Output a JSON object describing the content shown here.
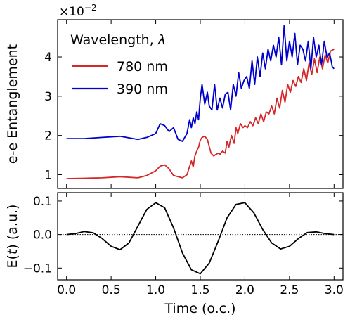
{
  "chart_data": [
    {
      "type": "line",
      "xlabel": "",
      "ylabel": "e-e Entanglement",
      "multiplier": "×10",
      "multiplier_exp": "−2",
      "xlim": [
        -0.1,
        3.1
      ],
      "ylim": [
        0.65,
        4.95
      ],
      "xticks": [
        0.0,
        0.5,
        1.0,
        1.5,
        2.0,
        2.5,
        3.0
      ],
      "yticks": [
        1,
        2,
        3,
        4
      ],
      "ytick_labels": [
        "1",
        "2",
        "3",
        "4"
      ],
      "legend": {
        "title": "Wavelength, ",
        "title_symbol": "λ",
        "position": "top-left"
      },
      "series": [
        {
          "name": "780 nm",
          "color": "#d62728",
          "x": [
            0.0,
            0.2,
            0.4,
            0.6,
            0.8,
            0.9,
            1.0,
            1.05,
            1.1,
            1.15,
            1.2,
            1.25,
            1.3,
            1.35,
            1.4,
            1.42,
            1.44,
            1.46,
            1.48,
            1.5,
            1.52,
            1.55,
            1.58,
            1.6,
            1.62,
            1.65,
            1.7,
            1.72,
            1.75,
            1.78,
            1.8,
            1.82,
            1.85,
            1.88,
            1.9,
            1.92,
            1.95,
            1.98,
            2.0,
            2.03,
            2.06,
            2.09,
            2.12,
            2.15,
            2.18,
            2.21,
            2.24,
            2.27,
            2.3,
            2.33,
            2.36,
            2.39,
            2.42,
            2.45,
            2.48,
            2.51,
            2.54,
            2.57,
            2.6,
            2.63,
            2.66,
            2.69,
            2.72,
            2.75,
            2.78,
            2.81,
            2.84,
            2.87,
            2.9,
            2.93,
            2.96,
            3.0
          ],
          "y": [
            0.9,
            0.91,
            0.92,
            0.95,
            0.92,
            0.98,
            1.1,
            1.22,
            1.25,
            1.15,
            0.98,
            0.95,
            0.92,
            1.0,
            1.35,
            1.2,
            1.48,
            1.6,
            1.7,
            1.88,
            1.95,
            1.98,
            1.9,
            1.72,
            1.55,
            1.48,
            1.55,
            1.52,
            1.6,
            1.55,
            1.85,
            1.7,
            2.0,
            1.8,
            2.2,
            2.05,
            2.3,
            2.2,
            2.25,
            2.2,
            2.35,
            2.25,
            2.45,
            2.3,
            2.55,
            2.35,
            2.6,
            2.55,
            2.75,
            2.55,
            2.95,
            2.7,
            3.15,
            2.85,
            3.3,
            3.1,
            3.4,
            3.25,
            3.5,
            3.35,
            3.7,
            3.4,
            3.85,
            3.55,
            3.95,
            3.6,
            4.0,
            3.7,
            4.05,
            3.85,
            4.15,
            4.2
          ]
        },
        {
          "name": "390 nm",
          "color": "#0000cc",
          "x": [
            0.0,
            0.2,
            0.4,
            0.6,
            0.8,
            0.9,
            1.0,
            1.05,
            1.1,
            1.15,
            1.2,
            1.25,
            1.3,
            1.35,
            1.38,
            1.4,
            1.42,
            1.44,
            1.46,
            1.48,
            1.5,
            1.52,
            1.55,
            1.58,
            1.6,
            1.63,
            1.66,
            1.69,
            1.72,
            1.75,
            1.78,
            1.81,
            1.84,
            1.87,
            1.9,
            1.93,
            1.96,
            1.99,
            2.02,
            2.05,
            2.08,
            2.11,
            2.14,
            2.17,
            2.2,
            2.23,
            2.26,
            2.29,
            2.32,
            2.35,
            2.38,
            2.41,
            2.44,
            2.47,
            2.5,
            2.53,
            2.56,
            2.59,
            2.62,
            2.65,
            2.68,
            2.71,
            2.74,
            2.77,
            2.8,
            2.83,
            2.86,
            2.89,
            2.92,
            2.95,
            2.98,
            3.0
          ],
          "y": [
            1.92,
            1.92,
            1.95,
            1.98,
            1.9,
            1.95,
            2.05,
            2.3,
            2.25,
            2.1,
            2.2,
            1.9,
            1.85,
            2.05,
            2.4,
            2.2,
            2.45,
            2.3,
            2.6,
            2.4,
            2.95,
            3.3,
            2.8,
            3.1,
            2.75,
            2.65,
            3.3,
            2.65,
            2.95,
            2.7,
            3.05,
            3.1,
            2.65,
            3.3,
            3.0,
            3.6,
            3.2,
            3.4,
            3.5,
            3.2,
            3.9,
            3.3,
            4.0,
            3.5,
            4.1,
            3.7,
            4.2,
            3.9,
            4.3,
            4.0,
            4.5,
            3.8,
            4.8,
            3.9,
            4.4,
            4.0,
            4.6,
            3.8,
            4.3,
            4.2,
            3.9,
            4.4,
            3.7,
            4.5,
            4.0,
            4.3,
            3.8,
            4.4,
            4.0,
            4.1,
            3.75,
            3.7
          ]
        }
      ]
    },
    {
      "type": "line",
      "xlabel": "Time (o.c.)",
      "ylabel": "E(t) (a.u.)",
      "ylabel_parts": [
        "E(",
        "t",
        ") (a.u.)"
      ],
      "xlim": [
        -0.1,
        3.1
      ],
      "ylim": [
        -0.135,
        0.125
      ],
      "xticks": [
        0.0,
        0.5,
        1.0,
        1.5,
        2.0,
        2.5,
        3.0
      ],
      "xtick_labels": [
        "0.0",
        "0.5",
        "1.0",
        "1.5",
        "2.0",
        "2.5",
        "3.0"
      ],
      "yticks": [
        0.1,
        0.0,
        -0.1
      ],
      "ytick_labels": [
        "0.1",
        "0.0",
        "−0.1"
      ],
      "zero_line": "dotted",
      "series": [
        {
          "color": "#000000",
          "x": [
            0.0,
            0.1,
            0.2,
            0.3,
            0.4,
            0.5,
            0.6,
            0.7,
            0.8,
            0.9,
            1.0,
            1.1,
            1.2,
            1.3,
            1.4,
            1.5,
            1.6,
            1.7,
            1.8,
            1.9,
            2.0,
            2.1,
            2.2,
            2.3,
            2.4,
            2.5,
            2.6,
            2.7,
            2.8,
            2.9,
            3.0
          ],
          "y": [
            0.0,
            0.003,
            0.009,
            0.005,
            -0.012,
            -0.035,
            -0.045,
            -0.025,
            0.025,
            0.075,
            0.095,
            0.08,
            0.02,
            -0.055,
            -0.105,
            -0.117,
            -0.085,
            -0.02,
            0.05,
            0.09,
            0.095,
            0.065,
            0.015,
            -0.025,
            -0.043,
            -0.035,
            -0.012,
            0.006,
            0.008,
            0.003,
            0.0
          ]
        }
      ]
    }
  ]
}
